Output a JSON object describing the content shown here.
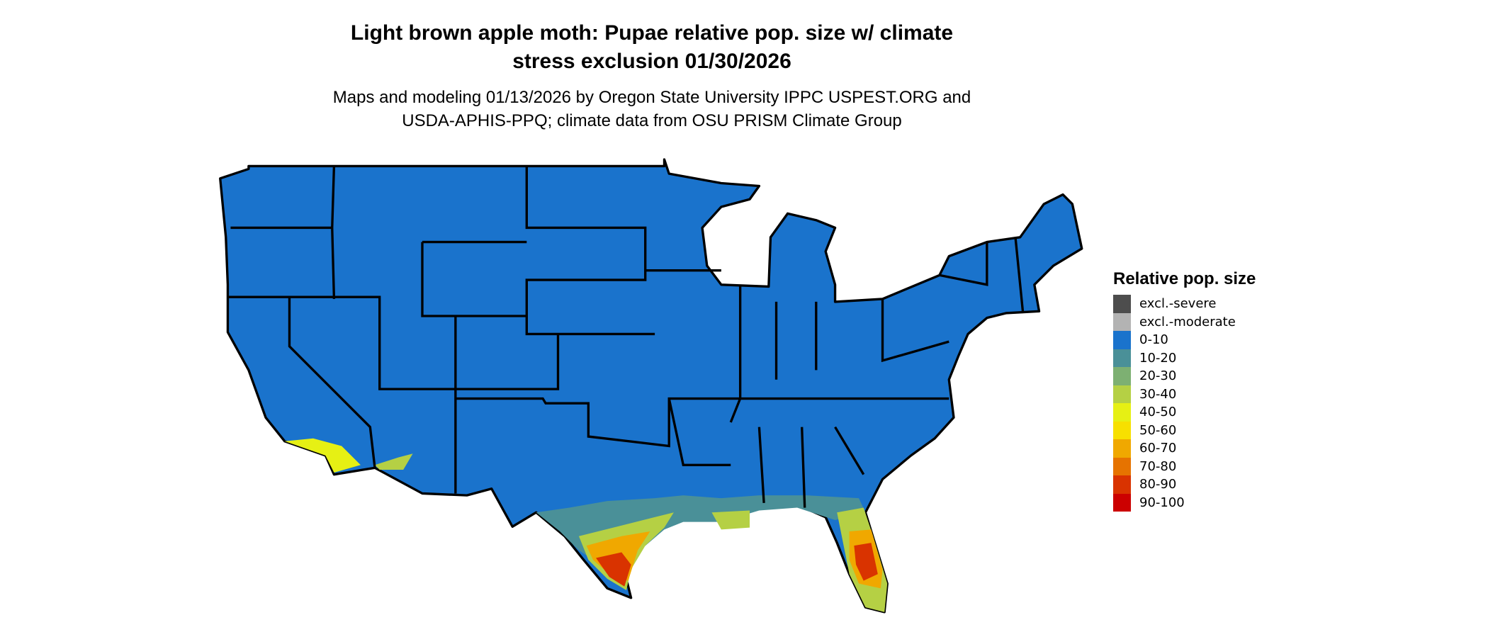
{
  "title_lines": [
    "Light brown apple moth: Pupae relative pop. size w/ climate",
    "stress exclusion 01/30/2026"
  ],
  "subtitle_lines": [
    "Maps and modeling 01/13/2026 by Oregon State University IPPC USPEST.ORG and",
    "USDA-APHIS-PPQ; climate data from OSU PRISM Climate Group"
  ],
  "map": {
    "region": "Contiguous United States",
    "dominant_class": "0-10",
    "background": "#ffffff",
    "border_color": "#000000"
  },
  "legend": {
    "title": "Relative pop. size",
    "items": [
      {
        "label": "excl.-severe",
        "color": "#4d4d4d"
      },
      {
        "label": "excl.-moderate",
        "color": "#b3b3b3"
      },
      {
        "label": "0-10",
        "color": "#1a73cc"
      },
      {
        "label": "10-20",
        "color": "#4a9098"
      },
      {
        "label": "20-30",
        "color": "#7db072"
      },
      {
        "label": "30-40",
        "color": "#b5d044"
      },
      {
        "label": "40-50",
        "color": "#e6f014"
      },
      {
        "label": "50-60",
        "color": "#f7e000"
      },
      {
        "label": "60-70",
        "color": "#f0a800"
      },
      {
        "label": "70-80",
        "color": "#e67300"
      },
      {
        "label": "80-90",
        "color": "#d93300"
      },
      {
        "label": "90-100",
        "color": "#cc0000"
      }
    ]
  }
}
